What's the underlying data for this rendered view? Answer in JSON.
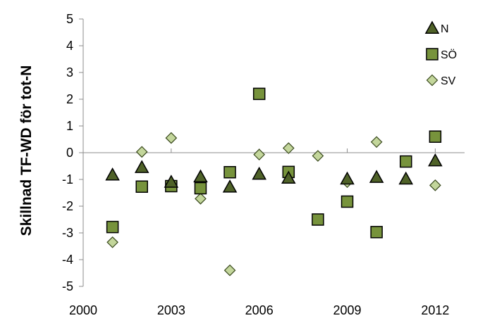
{
  "chart_data": {
    "type": "scatter",
    "title": "",
    "xlabel": "",
    "ylabel": "Skillnad TF-WD för tot-N",
    "xlim": [
      2000,
      2013
    ],
    "ylim": [
      -5,
      5
    ],
    "x_ticks": [
      2000,
      2003,
      2006,
      2009,
      2012
    ],
    "y_ticks": [
      5,
      4,
      3,
      2,
      1,
      0,
      -1,
      -2,
      -3,
      -4,
      -5
    ],
    "legend_position": "top-right",
    "series": [
      {
        "name": "N",
        "marker": "triangle",
        "color": "#4f6228",
        "points": [
          {
            "x": 2001,
            "y": -0.83
          },
          {
            "x": 2002,
            "y": -0.55
          },
          {
            "x": 2003,
            "y": -1.1
          },
          {
            "x": 2004,
            "y": -0.9
          },
          {
            "x": 2005,
            "y": -1.28
          },
          {
            "x": 2006,
            "y": -0.8
          },
          {
            "x": 2007,
            "y": -0.95
          },
          {
            "x": 2009,
            "y": -0.98
          },
          {
            "x": 2010,
            "y": -0.92
          },
          {
            "x": 2011,
            "y": -0.98
          },
          {
            "x": 2012,
            "y": -0.3
          }
        ]
      },
      {
        "name": "SÖ",
        "marker": "square",
        "color": "#77933c",
        "points": [
          {
            "x": 2001,
            "y": -2.78
          },
          {
            "x": 2002,
            "y": -1.27
          },
          {
            "x": 2003,
            "y": -1.25
          },
          {
            "x": 2004,
            "y": -1.33
          },
          {
            "x": 2005,
            "y": -0.73
          },
          {
            "x": 2006,
            "y": 2.2
          },
          {
            "x": 2007,
            "y": -0.72
          },
          {
            "x": 2008,
            "y": -2.5
          },
          {
            "x": 2009,
            "y": -1.83
          },
          {
            "x": 2010,
            "y": -2.97
          },
          {
            "x": 2011,
            "y": -0.33
          },
          {
            "x": 2012,
            "y": 0.6
          }
        ]
      },
      {
        "name": "SV",
        "marker": "diamond",
        "color": "#c3d69b",
        "points": [
          {
            "x": 2001,
            "y": -3.35
          },
          {
            "x": 2002,
            "y": 0.03
          },
          {
            "x": 2003,
            "y": 0.55
          },
          {
            "x": 2004,
            "y": -1.72
          },
          {
            "x": 2005,
            "y": -4.4
          },
          {
            "x": 2006,
            "y": -0.07
          },
          {
            "x": 2007,
            "y": 0.17
          },
          {
            "x": 2008,
            "y": -0.12
          },
          {
            "x": 2009,
            "y": -1.1
          },
          {
            "x": 2010,
            "y": 0.4
          },
          {
            "x": 2011,
            "y": null
          },
          {
            "x": 2012,
            "y": -1.22
          }
        ]
      }
    ]
  }
}
